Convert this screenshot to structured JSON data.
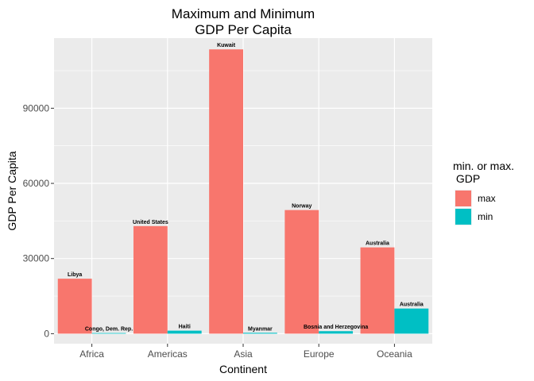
{
  "chart_data": {
    "type": "bar",
    "title": "Maximum and Minimum",
    "subtitle": "GDP Per Capita",
    "xlabel": "Continent",
    "ylabel": "GDP Per Capita",
    "categories": [
      "Africa",
      "Americas",
      "Asia",
      "Europe",
      "Oceania"
    ],
    "ylim": [
      -4000,
      118000
    ],
    "yticks": [
      0,
      30000,
      60000,
      90000
    ],
    "ytick_labels": [
      "0",
      "30000",
      "60000",
      "90000"
    ],
    "grid": true,
    "legend": {
      "title_line1": "min. or max.",
      "title_line2": " GDP",
      "position": "right"
    },
    "series": [
      {
        "name": "max",
        "color": "#F8766D",
        "values": [
          21950,
          42950,
          113500,
          49350,
          34450
        ],
        "labels": [
          "Libya",
          "United States",
          "Kuwait",
          "Norway",
          "Australia"
        ]
      },
      {
        "name": "min",
        "color": "#00BFC4",
        "values": [
          250,
          1200,
          350,
          1000,
          10040
        ],
        "labels": [
          "Congo, Dem. Rep.",
          "Haiti",
          "Myanmar",
          "Bosnia and Herzegovina",
          "Australia"
        ]
      }
    ]
  }
}
